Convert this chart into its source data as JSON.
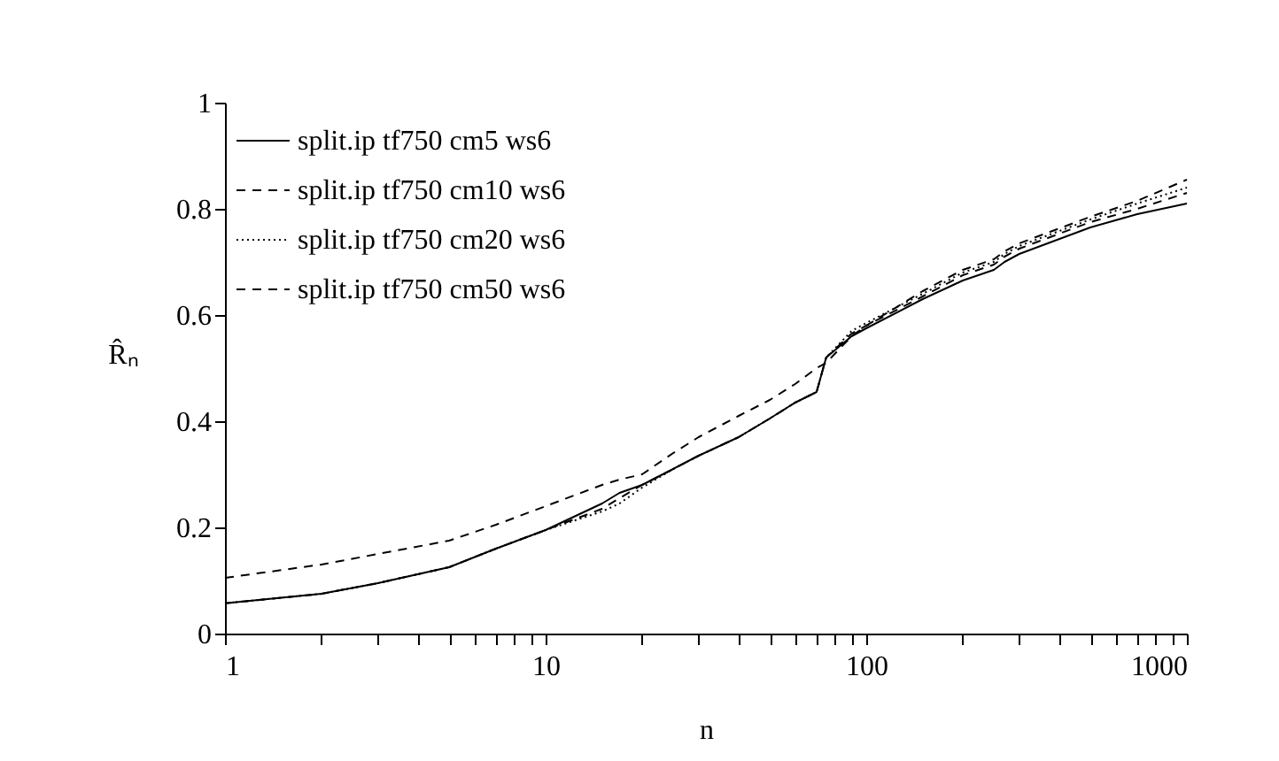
{
  "chart_data": {
    "type": "line",
    "xlabel": "n",
    "ylabel": "R̂ₙ",
    "log": "x",
    "grid": false,
    "legend": "top left",
    "marker": "none",
    "xlim": [
      1,
      1000
    ],
    "ylim": [
      0,
      1
    ],
    "xticks": [
      1,
      {
        "value": 2,
        "label": null
      },
      {
        "value": 3,
        "label": null
      },
      {
        "value": 4,
        "label": null
      },
      {
        "value": 5,
        "label": null
      },
      {
        "value": 6,
        "label": null
      },
      {
        "value": 7,
        "label": null
      },
      {
        "value": 8,
        "label": null
      },
      {
        "value": 9,
        "label": null
      },
      10,
      {
        "value": 20,
        "label": null
      },
      {
        "value": 30,
        "label": null
      },
      {
        "value": 40,
        "label": null
      },
      {
        "value": 50,
        "label": null
      },
      {
        "value": 60,
        "label": null
      },
      {
        "value": 70,
        "label": null
      },
      {
        "value": 80,
        "label": null
      },
      {
        "value": 90,
        "label": null
      },
      100,
      {
        "value": 200,
        "label": null
      },
      {
        "value": 300,
        "label": null
      },
      {
        "value": 400,
        "label": null
      },
      {
        "value": 500,
        "label": null
      },
      {
        "value": 600,
        "label": null
      },
      {
        "value": 700,
        "label": null
      },
      {
        "value": 800,
        "label": null
      },
      {
        "value": 900,
        "label": null
      },
      1000
    ],
    "yticks": [
      0,
      0.2,
      0.4,
      0.6,
      0.8,
      1
    ],
    "x": [
      1,
      2,
      3,
      5,
      7,
      10,
      15,
      17,
      20,
      25,
      30,
      40,
      50,
      60,
      70,
      75,
      90,
      100,
      150,
      200,
      250,
      270,
      300,
      500,
      700,
      1000
    ],
    "series": [
      {
        "name": "split.ip tf750 cm5 ws6",
        "color": "#000000",
        "line_style": "solid",
        "values": [
          0.057,
          0.075,
          0.095,
          0.125,
          0.16,
          0.195,
          0.245,
          0.265,
          0.28,
          0.31,
          0.335,
          0.37,
          0.405,
          0.435,
          0.455,
          0.52,
          0.56,
          0.575,
          0.63,
          0.665,
          0.685,
          0.7,
          0.715,
          0.765,
          0.79,
          0.81
        ]
      },
      {
        "name": "split.ip tf750 cm10 ws6",
        "color": "#000000",
        "line_style": "dashed",
        "values": [
          0.057,
          0.075,
          0.095,
          0.125,
          0.16,
          0.195,
          0.235,
          0.255,
          0.28,
          0.31,
          0.335,
          0.37,
          0.405,
          0.435,
          0.455,
          0.52,
          0.565,
          0.58,
          0.635,
          0.675,
          0.695,
          0.71,
          0.725,
          0.775,
          0.8,
          0.83
        ]
      },
      {
        "name": "split.ip tf750 cm20 ws6",
        "color": "#000000",
        "line_style": "dotted",
        "values": [
          0.057,
          0.075,
          0.095,
          0.125,
          0.16,
          0.195,
          0.23,
          0.245,
          0.275,
          0.31,
          0.335,
          0.37,
          0.405,
          0.435,
          0.455,
          0.52,
          0.57,
          0.585,
          0.64,
          0.68,
          0.7,
          0.715,
          0.73,
          0.78,
          0.81,
          0.84
        ]
      },
      {
        "name": "split.ip tf750 cm50 ws6",
        "color": "#000000",
        "line_style": "dashed",
        "values": [
          0.105,
          0.13,
          0.15,
          0.175,
          0.205,
          0.24,
          0.28,
          0.29,
          0.3,
          0.34,
          0.37,
          0.41,
          0.44,
          0.47,
          0.5,
          0.51,
          0.56,
          0.58,
          0.645,
          0.685,
          0.705,
          0.72,
          0.735,
          0.785,
          0.815,
          0.855
        ]
      }
    ]
  }
}
